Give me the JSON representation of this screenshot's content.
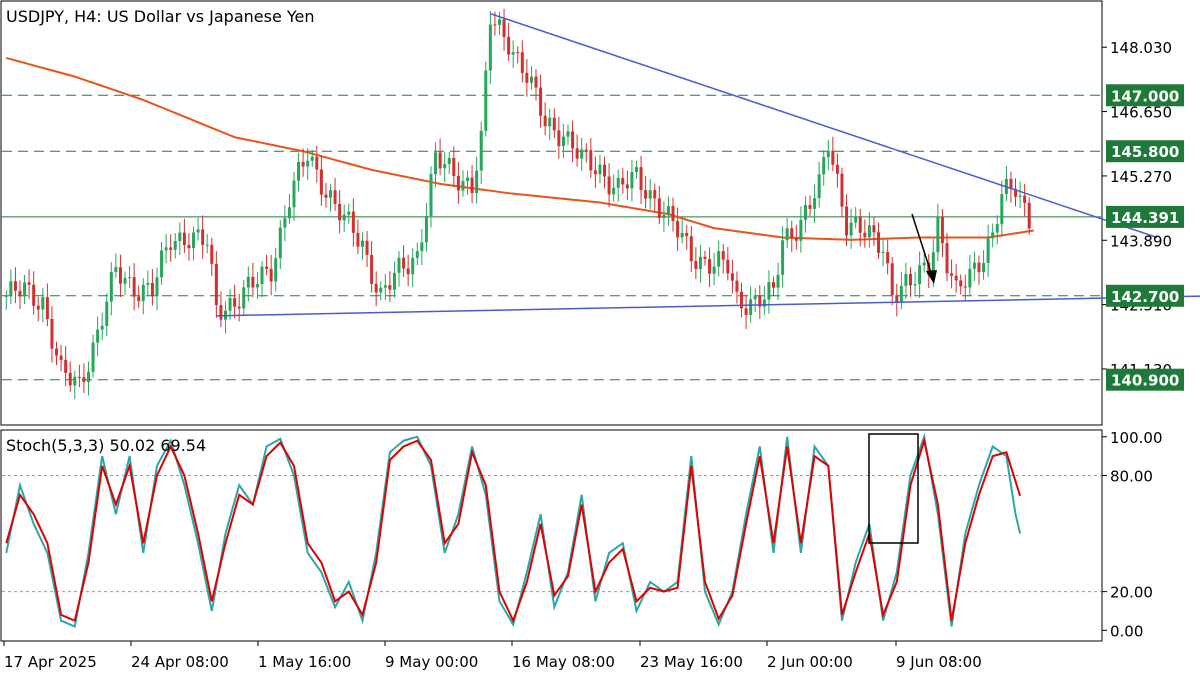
{
  "chart_data": [
    {
      "type": "candlestick",
      "title": "USDJPY, H4:  US Dollar vs Japanese Yen",
      "ylim": [
        139.95,
        149.0
      ],
      "y_ticks": [
        "148.030",
        "146.650",
        "145.270",
        "143.890",
        "142.510",
        "141.130"
      ],
      "x_ticks": [
        "17 Apr 2025",
        "24 Apr 08:00",
        "1 May 16:00",
        "9 May 00:00",
        "16 May 08:00",
        "23 May 16:00",
        "2 Jun 00:00",
        "9 Jun 08:00"
      ],
      "levels": [
        {
          "value": 147.0,
          "label": "147.000",
          "style": "dashed"
        },
        {
          "value": 145.8,
          "label": "145.800",
          "style": "dashed"
        },
        {
          "value": 144.391,
          "label": "144.391",
          "style": "solid"
        },
        {
          "value": 142.7,
          "label": "142.700",
          "style": "dashed"
        },
        {
          "value": 140.9,
          "label": "140.900",
          "style": "dashed"
        }
      ],
      "trendlines": [
        {
          "from": [
            106,
            148.75
          ],
          "to": [
            252,
            143.95
          ]
        },
        {
          "from": [
            46,
            142.27
          ],
          "to": [
            276,
            142.72
          ]
        }
      ],
      "moving_average_points": [
        [
          0,
          147.8
        ],
        [
          15,
          147.4
        ],
        [
          30,
          146.9
        ],
        [
          50,
          146.1
        ],
        [
          65,
          145.8
        ],
        [
          80,
          145.4
        ],
        [
          95,
          145.1
        ],
        [
          110,
          144.9
        ],
        [
          130,
          144.7
        ],
        [
          145,
          144.45
        ],
        [
          155,
          144.15
        ],
        [
          170,
          143.95
        ],
        [
          185,
          143.9
        ],
        [
          200,
          143.95
        ],
        [
          215,
          143.95
        ],
        [
          225,
          144.1
        ]
      ],
      "candle_anchors": [
        [
          0,
          142.7
        ],
        [
          4,
          142.8
        ],
        [
          8,
          142.6
        ],
        [
          12,
          141.0
        ],
        [
          16,
          140.8
        ],
        [
          20,
          141.9
        ],
        [
          24,
          143.2
        ],
        [
          28,
          142.9
        ],
        [
          32,
          142.8
        ],
        [
          36,
          143.9
        ],
        [
          40,
          144.0
        ],
        [
          44,
          143.8
        ],
        [
          46,
          142.4
        ],
        [
          50,
          142.6
        ],
        [
          54,
          142.9
        ],
        [
          58,
          143.3
        ],
        [
          62,
          144.8
        ],
        [
          66,
          145.7
        ],
        [
          70,
          145.0
        ],
        [
          74,
          144.3
        ],
        [
          78,
          143.8
        ],
        [
          82,
          142.7
        ],
        [
          86,
          143.2
        ],
        [
          90,
          143.6
        ],
        [
          94,
          145.6
        ],
        [
          98,
          145.3
        ],
        [
          102,
          145.1
        ],
        [
          104,
          146.0
        ],
        [
          106,
          148.6
        ],
        [
          110,
          148.2
        ],
        [
          114,
          147.4
        ],
        [
          118,
          146.4
        ],
        [
          122,
          146.2
        ],
        [
          126,
          145.6
        ],
        [
          130,
          145.4
        ],
        [
          134,
          145.0
        ],
        [
          138,
          145.2
        ],
        [
          142,
          144.8
        ],
        [
          146,
          144.2
        ],
        [
          150,
          143.6
        ],
        [
          154,
          143.4
        ],
        [
          158,
          143.3
        ],
        [
          160,
          142.6
        ],
        [
          164,
          142.6
        ],
        [
          168,
          142.7
        ],
        [
          170,
          143.9
        ],
        [
          174,
          144.3
        ],
        [
          178,
          145.0
        ],
        [
          180,
          146.0
        ],
        [
          182,
          145.2
        ],
        [
          184,
          144.3
        ],
        [
          188,
          144.0
        ],
        [
          192,
          143.8
        ],
        [
          194,
          142.8
        ],
        [
          198,
          142.9
        ],
        [
          202,
          143.4
        ],
        [
          204,
          144.3
        ],
        [
          206,
          143.4
        ],
        [
          208,
          142.7
        ],
        [
          212,
          143.3
        ],
        [
          216,
          144.0
        ],
        [
          218,
          144.8
        ],
        [
          221,
          145.0
        ],
        [
          224,
          144.4
        ]
      ]
    },
    {
      "type": "line",
      "title": "Stoch(5,3,3) 50.02 69.54",
      "ylim": [
        -5,
        103
      ],
      "y_ticks": [
        "100.00",
        "80.00",
        "20.00",
        "0.00"
      ],
      "reference_levels": [
        80,
        20
      ],
      "series": [
        {
          "name": "",
          "color": "#2aa8a8",
          "anchors": [
            [
              0,
              40
            ],
            [
              3,
              75
            ],
            [
              6,
              55
            ],
            [
              9,
              40
            ],
            [
              12,
              5
            ],
            [
              15,
              2
            ],
            [
              18,
              40
            ],
            [
              21,
              90
            ],
            [
              24,
              60
            ],
            [
              27,
              90
            ],
            [
              30,
              40
            ],
            [
              33,
              85
            ],
            [
              36,
              98
            ],
            [
              39,
              75
            ],
            [
              42,
              45
            ],
            [
              45,
              10
            ],
            [
              48,
              50
            ],
            [
              51,
              75
            ],
            [
              54,
              65
            ],
            [
              57,
              95
            ],
            [
              60,
              99
            ],
            [
              63,
              80
            ],
            [
              66,
              40
            ],
            [
              69,
              30
            ],
            [
              72,
              12
            ],
            [
              75,
              25
            ],
            [
              78,
              5
            ],
            [
              81,
              40
            ],
            [
              84,
              92
            ],
            [
              87,
              98
            ],
            [
              90,
              100
            ],
            [
              93,
              85
            ],
            [
              96,
              40
            ],
            [
              99,
              60
            ],
            [
              102,
              95
            ],
            [
              105,
              70
            ],
            [
              108,
              15
            ],
            [
              111,
              3
            ],
            [
              114,
              30
            ],
            [
              117,
              60
            ],
            [
              120,
              12
            ],
            [
              123,
              30
            ],
            [
              126,
              70
            ],
            [
              129,
              15
            ],
            [
              132,
              40
            ],
            [
              135,
              45
            ],
            [
              138,
              10
            ],
            [
              141,
              25
            ],
            [
              144,
              20
            ],
            [
              147,
              25
            ],
            [
              150,
              90
            ],
            [
              153,
              20
            ],
            [
              156,
              3
            ],
            [
              159,
              20
            ],
            [
              162,
              60
            ],
            [
              165,
              95
            ],
            [
              168,
              40
            ],
            [
              171,
              100
            ],
            [
              174,
              40
            ],
            [
              177,
              95
            ],
            [
              180,
              85
            ],
            [
              183,
              5
            ],
            [
              186,
              35
            ],
            [
              189,
              55
            ],
            [
              192,
              5
            ],
            [
              195,
              30
            ],
            [
              198,
              80
            ],
            [
              201,
              100
            ],
            [
              204,
              60
            ],
            [
              207,
              2
            ],
            [
              210,
              50
            ],
            [
              213,
              75
            ],
            [
              216,
              95
            ],
            [
              219,
              90
            ],
            [
              221,
              60
            ],
            [
              222,
              50
            ]
          ]
        },
        {
          "name": "",
          "color": "#e00000",
          "anchors": [
            [
              0,
              45
            ],
            [
              3,
              70
            ],
            [
              6,
              60
            ],
            [
              9,
              45
            ],
            [
              12,
              8
            ],
            [
              15,
              5
            ],
            [
              18,
              35
            ],
            [
              21,
              85
            ],
            [
              24,
              65
            ],
            [
              27,
              85
            ],
            [
              30,
              45
            ],
            [
              33,
              80
            ],
            [
              36,
              95
            ],
            [
              39,
              80
            ],
            [
              42,
              50
            ],
            [
              45,
              15
            ],
            [
              48,
              45
            ],
            [
              51,
              70
            ],
            [
              54,
              65
            ],
            [
              57,
              90
            ],
            [
              60,
              97
            ],
            [
              63,
              85
            ],
            [
              66,
              45
            ],
            [
              69,
              35
            ],
            [
              72,
              15
            ],
            [
              75,
              20
            ],
            [
              78,
              8
            ],
            [
              81,
              35
            ],
            [
              84,
              88
            ],
            [
              87,
              95
            ],
            [
              90,
              98
            ],
            [
              93,
              88
            ],
            [
              96,
              45
            ],
            [
              99,
              55
            ],
            [
              102,
              92
            ],
            [
              105,
              75
            ],
            [
              108,
              20
            ],
            [
              111,
              5
            ],
            [
              114,
              25
            ],
            [
              117,
              55
            ],
            [
              120,
              18
            ],
            [
              123,
              28
            ],
            [
              126,
              65
            ],
            [
              129,
              20
            ],
            [
              132,
              35
            ],
            [
              135,
              42
            ],
            [
              138,
              15
            ],
            [
              141,
              22
            ],
            [
              144,
              20
            ],
            [
              147,
              22
            ],
            [
              150,
              85
            ],
            [
              153,
              25
            ],
            [
              156,
              6
            ],
            [
              159,
              18
            ],
            [
              162,
              55
            ],
            [
              165,
              90
            ],
            [
              168,
              45
            ],
            [
              171,
              95
            ],
            [
              174,
              45
            ],
            [
              177,
              90
            ],
            [
              180,
              85
            ],
            [
              183,
              8
            ],
            [
              186,
              30
            ],
            [
              189,
              50
            ],
            [
              192,
              8
            ],
            [
              195,
              25
            ],
            [
              198,
              75
            ],
            [
              201,
              98
            ],
            [
              204,
              65
            ],
            [
              207,
              5
            ],
            [
              210,
              45
            ],
            [
              213,
              70
            ],
            [
              216,
              90
            ],
            [
              219,
              92
            ],
            [
              222,
              69.54
            ]
          ]
        }
      ]
    }
  ],
  "colors": {
    "bull": "#26a65b",
    "bear": "#d32f2f",
    "ma": "#e8541a",
    "trend": "#4a5bd0",
    "level": "#1f7a3a",
    "axis": "#000000"
  }
}
